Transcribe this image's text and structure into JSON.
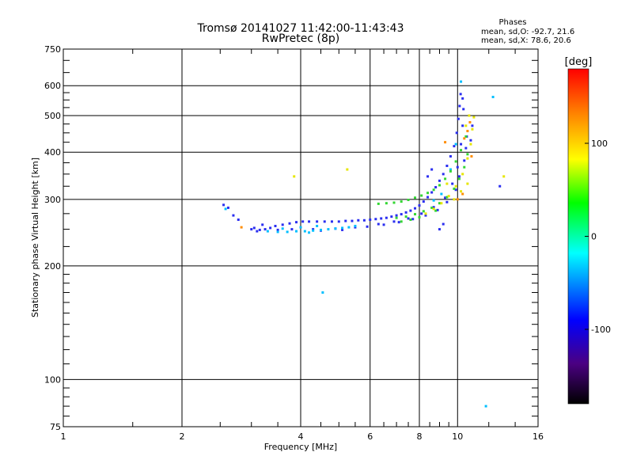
{
  "header": {
    "title_line1": "Tromsø 20141027 11:42:00-11:43:43",
    "title_line2": "RwPretec (8p)"
  },
  "phases_box": {
    "heading": "Phases",
    "line_o": "mean, sd,O: -92.7, 21.6",
    "line_x": "mean, sd,X:  78.6, 20.6"
  },
  "chart_data": {
    "type": "scatter",
    "xlabel": "Frequency [MHz]",
    "ylabel": "Stationary phase Virtual Height [km]",
    "x_scale": "log",
    "y_scale": "log",
    "xlim": [
      1,
      16
    ],
    "ylim": [
      75,
      750
    ],
    "x_ticks": [
      1,
      2,
      4,
      6,
      8,
      10,
      16
    ],
    "x_minor_ticks": [
      3,
      5,
      7,
      9
    ],
    "y_ticks": [
      75,
      100,
      200,
      300,
      400,
      500,
      600,
      750
    ],
    "y_minor_ticks": [
      80,
      90,
      150,
      250,
      350,
      450,
      550,
      650,
      700
    ],
    "grid": true,
    "colorbar": {
      "label": "deg",
      "range": [
        -180,
        180
      ],
      "ticks": [
        100,
        0,
        -100
      ],
      "tick_labels": [
        "100",
        "0",
        "-100"
      ]
    },
    "series": [
      {
        "mode": "O",
        "color": "#2a2ef0",
        "points": [
          [
            2.55,
            290
          ],
          [
            2.62,
            285
          ],
          [
            2.7,
            272
          ],
          [
            2.78,
            265
          ],
          [
            3.05,
            252
          ],
          [
            3.15,
            249
          ],
          [
            3.25,
            250
          ],
          [
            3.35,
            252
          ],
          [
            3.45,
            255
          ],
          [
            3.6,
            257
          ],
          [
            3.75,
            259
          ],
          [
            3.9,
            261
          ],
          [
            4.05,
            262
          ],
          [
            4.2,
            262
          ],
          [
            4.4,
            262
          ],
          [
            4.6,
            262
          ],
          [
            4.8,
            262
          ],
          [
            5.0,
            262
          ],
          [
            5.2,
            263
          ],
          [
            5.4,
            263
          ],
          [
            5.6,
            264
          ],
          [
            5.8,
            264
          ],
          [
            6.0,
            265
          ],
          [
            6.2,
            266
          ],
          [
            6.4,
            267
          ],
          [
            6.6,
            268
          ],
          [
            6.8,
            270
          ],
          [
            7.0,
            272
          ],
          [
            7.2,
            274
          ],
          [
            7.4,
            277
          ],
          [
            7.6,
            280
          ],
          [
            7.8,
            284
          ],
          [
            8.0,
            289
          ],
          [
            8.2,
            296
          ],
          [
            8.4,
            304
          ],
          [
            8.6,
            313
          ],
          [
            8.8,
            323
          ],
          [
            9.0,
            336
          ],
          [
            9.2,
            350
          ],
          [
            9.4,
            368
          ],
          [
            9.6,
            390
          ],
          [
            9.8,
            415
          ],
          [
            9.95,
            450
          ],
          [
            10.05,
            490
          ],
          [
            10.12,
            530
          ],
          [
            10.18,
            570
          ],
          [
            3.2,
            257
          ],
          [
            3.5,
            249
          ],
          [
            3.8,
            250
          ],
          [
            4.3,
            250
          ],
          [
            4.9,
            251
          ],
          [
            5.5,
            253
          ],
          [
            6.3,
            258
          ],
          [
            6.9,
            262
          ],
          [
            7.5,
            267
          ],
          [
            8.1,
            275
          ],
          [
            8.7,
            286
          ],
          [
            9.3,
            303
          ],
          [
            9.7,
            330
          ],
          [
            10.0,
            365
          ],
          [
            10.2,
            420
          ],
          [
            10.3,
            470
          ],
          [
            10.35,
            520
          ],
          [
            10.3,
            555
          ],
          [
            3.0,
            250
          ],
          [
            3.1,
            247
          ],
          [
            4.5,
            248
          ],
          [
            5.1,
            249
          ],
          [
            5.9,
            254
          ],
          [
            6.5,
            257
          ],
          [
            7.1,
            261
          ],
          [
            7.7,
            266
          ],
          [
            8.3,
            272
          ],
          [
            8.9,
            281
          ],
          [
            9.4,
            295
          ],
          [
            9.9,
            318
          ],
          [
            10.1,
            345
          ],
          [
            10.4,
            380
          ],
          [
            10.5,
            410
          ],
          [
            10.55,
            440
          ],
          [
            9.0,
            250
          ],
          [
            9.2,
            258
          ],
          [
            10.8,
            430
          ],
          [
            10.9,
            470
          ],
          [
            12.8,
            325
          ],
          [
            8.4,
            345
          ],
          [
            8.6,
            360
          ]
        ]
      },
      {
        "mode": "O-cyan",
        "color": "#00bfff",
        "points": [
          [
            3.3,
            247
          ],
          [
            3.5,
            246
          ],
          [
            3.7,
            246
          ],
          [
            3.9,
            247
          ],
          [
            4.1,
            247
          ],
          [
            4.3,
            248
          ],
          [
            4.5,
            249
          ],
          [
            4.7,
            250
          ],
          [
            4.9,
            251
          ],
          [
            5.1,
            252
          ],
          [
            5.3,
            253
          ],
          [
            5.5,
            255
          ],
          [
            3.6,
            251
          ],
          [
            4.0,
            253
          ],
          [
            4.4,
            255
          ],
          [
            4.2,
            245
          ],
          [
            9.6,
            360
          ],
          [
            9.9,
            420
          ],
          [
            10.2,
            615
          ],
          [
            4.55,
            170
          ],
          [
            11.8,
            85
          ],
          [
            12.3,
            560
          ],
          [
            8.7,
            298
          ],
          [
            9.1,
            310
          ],
          [
            2.58,
            283
          ]
        ]
      },
      {
        "mode": "X-green",
        "color": "#33d633",
        "points": [
          [
            6.3,
            292
          ],
          [
            6.6,
            293
          ],
          [
            6.9,
            294
          ],
          [
            7.2,
            296
          ],
          [
            7.5,
            299
          ],
          [
            7.8,
            303
          ],
          [
            8.1,
            307
          ],
          [
            8.4,
            312
          ],
          [
            8.7,
            318
          ],
          [
            9.0,
            327
          ],
          [
            9.3,
            340
          ],
          [
            9.6,
            356
          ],
          [
            9.9,
            378
          ],
          [
            10.2,
            405
          ],
          [
            10.5,
            440
          ],
          [
            7.0,
            268
          ],
          [
            7.4,
            270
          ],
          [
            7.8,
            274
          ],
          [
            8.2,
            279
          ],
          [
            8.6,
            285
          ],
          [
            9.0,
            293
          ],
          [
            9.4,
            304
          ],
          [
            9.8,
            320
          ],
          [
            10.1,
            340
          ],
          [
            10.4,
            365
          ],
          [
            10.6,
            395
          ],
          [
            7.2,
            262
          ],
          [
            7.6,
            265
          ],
          [
            8.0,
            269
          ],
          [
            8.8,
            280
          ]
        ]
      },
      {
        "mode": "X-yellow",
        "color": "#e6e600",
        "points": [
          [
            8.3,
            275
          ],
          [
            8.7,
            283
          ],
          [
            9.1,
            293
          ],
          [
            9.5,
            306
          ],
          [
            9.9,
            325
          ],
          [
            10.3,
            350
          ],
          [
            10.6,
            385
          ],
          [
            10.8,
            420
          ],
          [
            10.9,
            460
          ],
          [
            11.0,
            495
          ],
          [
            10.5,
            470
          ],
          [
            10.7,
            500
          ],
          [
            3.85,
            345
          ],
          [
            5.25,
            360
          ],
          [
            13.1,
            345
          ],
          [
            9.4,
            330
          ],
          [
            9.8,
            300
          ],
          [
            10.2,
            315
          ],
          [
            10.6,
            330
          ]
        ]
      },
      {
        "mode": "X-orange",
        "color": "#ff8c00",
        "points": [
          [
            10.4,
            435
          ],
          [
            10.6,
            455
          ],
          [
            10.75,
            480
          ],
          [
            10.85,
            390
          ],
          [
            9.3,
            425
          ],
          [
            10.0,
            300
          ],
          [
            10.3,
            310
          ],
          [
            2.83,
            253
          ]
        ]
      }
    ]
  }
}
